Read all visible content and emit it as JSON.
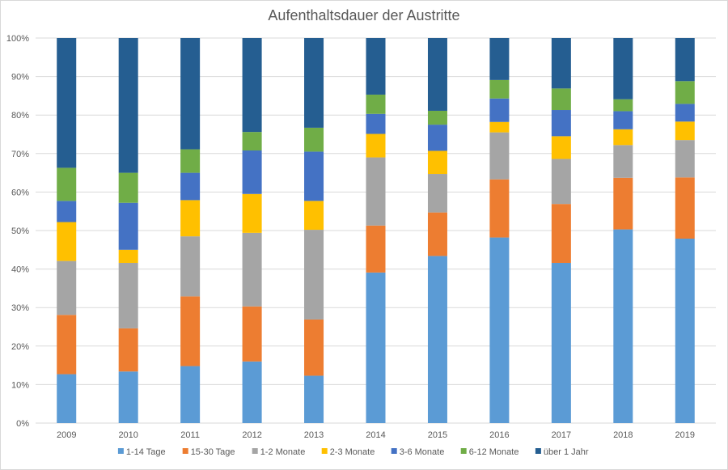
{
  "chart_data": {
    "type": "bar",
    "stacked": true,
    "percent_stacked": true,
    "title": "Aufenthaltsdauer der Austritte",
    "xlabel": "",
    "ylabel": "",
    "categories": [
      "2009",
      "2010",
      "2011",
      "2012",
      "2013",
      "2014",
      "2015",
      "2016",
      "2017",
      "2018",
      "2019"
    ],
    "y_ticks": [
      "0%",
      "10%",
      "20%",
      "30%",
      "40%",
      "50%",
      "60%",
      "70%",
      "80%",
      "90%",
      "100%"
    ],
    "ylim": [
      0,
      100
    ],
    "grid": true,
    "legend_position": "bottom",
    "series": [
      {
        "name": "1-14 Tage",
        "color": "#5b9bd5",
        "values": [
          12.7,
          13.4,
          14.8,
          16.0,
          12.3,
          39.1,
          43.4,
          48.2,
          41.6,
          50.3,
          47.9
        ]
      },
      {
        "name": "15-30 Tage",
        "color": "#ed7d31",
        "values": [
          15.4,
          11.2,
          18.1,
          14.3,
          14.6,
          12.2,
          11.3,
          15.1,
          15.3,
          13.4,
          15.9
        ]
      },
      {
        "name": "1-2 Monate",
        "color": "#a5a5a5",
        "values": [
          14.0,
          17.0,
          15.6,
          19.1,
          23.3,
          17.7,
          10.0,
          12.2,
          11.7,
          8.5,
          9.7
        ]
      },
      {
        "name": "2-3 Monate",
        "color": "#ffc000",
        "values": [
          10.1,
          3.4,
          9.4,
          10.1,
          7.5,
          6.1,
          6.0,
          2.7,
          5.9,
          4.1,
          4.8
        ]
      },
      {
        "name": "3-6 Monate",
        "color": "#4472c4",
        "values": [
          5.5,
          12.2,
          7.1,
          11.3,
          12.8,
          5.2,
          6.8,
          6.1,
          6.8,
          4.7,
          4.6
        ]
      },
      {
        "name": "6-12 Monate",
        "color": "#70ad47",
        "values": [
          8.6,
          7.8,
          6.1,
          4.8,
          6.2,
          5.0,
          3.6,
          4.8,
          5.6,
          3.1,
          5.9
        ]
      },
      {
        "name": "über 1 Jahr",
        "color": "#255e91",
        "values": [
          33.7,
          35.0,
          28.9,
          24.4,
          23.3,
          14.7,
          18.9,
          10.9,
          13.1,
          15.9,
          11.2
        ]
      }
    ]
  }
}
